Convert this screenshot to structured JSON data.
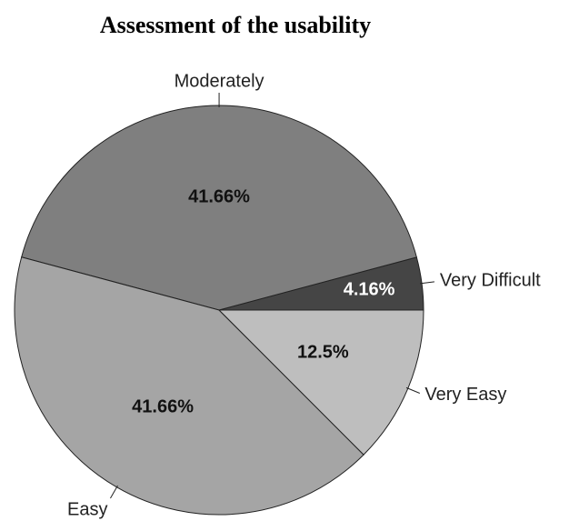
{
  "chart_data": {
    "type": "pie",
    "title": "Assessment of the usability",
    "categories": [
      "Very Difficult",
      "Moderately",
      "Easy",
      "Very Easy"
    ],
    "values": [
      4.16,
      41.66,
      41.66,
      12.5
    ],
    "value_labels": [
      "4.16%",
      "41.66%",
      "41.66%",
      "12.5%"
    ],
    "colors": [
      "#454545",
      "#7f7f7f",
      "#a5a5a5",
      "#bebebe"
    ]
  }
}
